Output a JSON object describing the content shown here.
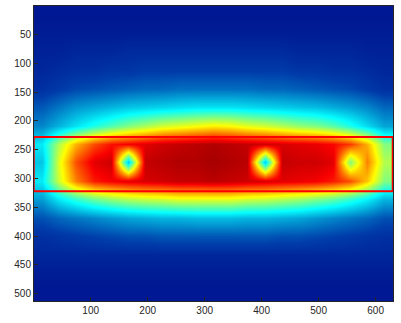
{
  "chart_data": {
    "type": "heatmap",
    "color": "Jet",
    "x": [
      15,
      45,
      75,
      105,
      135,
      165,
      195,
      225,
      255,
      285,
      315,
      345,
      375,
      405,
      435,
      465,
      495,
      525,
      555,
      585,
      615
    ],
    "y": [
      16,
      48,
      80,
      112,
      144,
      176,
      208,
      240,
      272,
      304,
      336,
      368,
      400,
      432,
      464,
      496
    ],
    "zlim": [
      0,
      1
    ],
    "cells": [
      [
        0.05,
        0.05,
        0.05,
        0.05,
        0.05,
        0.05,
        0.05,
        0.05,
        0.05,
        0.05,
        0.05,
        0.05,
        0.05,
        0.05,
        0.05,
        0.05,
        0.05,
        0.05,
        0.05,
        0.05,
        0.05
      ],
      [
        0.06,
        0.06,
        0.06,
        0.06,
        0.06,
        0.06,
        0.06,
        0.06,
        0.06,
        0.06,
        0.06,
        0.06,
        0.06,
        0.06,
        0.06,
        0.06,
        0.06,
        0.06,
        0.06,
        0.06,
        0.06
      ],
      [
        0.07,
        0.07,
        0.08,
        0.08,
        0.08,
        0.09,
        0.09,
        0.09,
        0.09,
        0.09,
        0.09,
        0.09,
        0.09,
        0.09,
        0.09,
        0.08,
        0.08,
        0.08,
        0.08,
        0.07,
        0.07
      ],
      [
        0.08,
        0.09,
        0.1,
        0.1,
        0.11,
        0.11,
        0.12,
        0.12,
        0.12,
        0.12,
        0.12,
        0.12,
        0.12,
        0.12,
        0.12,
        0.11,
        0.11,
        0.1,
        0.1,
        0.09,
        0.08
      ],
      [
        0.1,
        0.12,
        0.14,
        0.15,
        0.16,
        0.17,
        0.18,
        0.18,
        0.19,
        0.19,
        0.19,
        0.19,
        0.19,
        0.18,
        0.18,
        0.17,
        0.16,
        0.15,
        0.14,
        0.12,
        0.1
      ],
      [
        0.16,
        0.2,
        0.24,
        0.26,
        0.28,
        0.3,
        0.31,
        0.32,
        0.33,
        0.34,
        0.34,
        0.34,
        0.33,
        0.32,
        0.31,
        0.3,
        0.29,
        0.27,
        0.25,
        0.22,
        0.18
      ],
      [
        0.22,
        0.28,
        0.34,
        0.4,
        0.45,
        0.5,
        0.54,
        0.58,
        0.6,
        0.62,
        0.64,
        0.63,
        0.6,
        0.58,
        0.55,
        0.52,
        0.5,
        0.46,
        0.4,
        0.33,
        0.26
      ],
      [
        0.35,
        0.55,
        0.7,
        0.8,
        0.86,
        0.88,
        0.9,
        0.92,
        0.93,
        0.94,
        0.95,
        0.94,
        0.93,
        0.92,
        0.91,
        0.9,
        0.89,
        0.87,
        0.82,
        0.7,
        0.5
      ],
      [
        0.3,
        0.6,
        0.8,
        0.9,
        0.92,
        0.3,
        0.93,
        0.94,
        0.95,
        0.95,
        0.96,
        0.95,
        0.94,
        0.3,
        0.93,
        0.92,
        0.92,
        0.9,
        0.5,
        0.75,
        0.55
      ],
      [
        0.35,
        0.58,
        0.75,
        0.85,
        0.88,
        0.9,
        0.91,
        0.92,
        0.93,
        0.93,
        0.94,
        0.93,
        0.92,
        0.91,
        0.9,
        0.89,
        0.88,
        0.85,
        0.8,
        0.68,
        0.5
      ],
      [
        0.25,
        0.35,
        0.42,
        0.48,
        0.52,
        0.55,
        0.57,
        0.58,
        0.6,
        0.6,
        0.6,
        0.6,
        0.58,
        0.57,
        0.55,
        0.53,
        0.5,
        0.47,
        0.42,
        0.36,
        0.28
      ],
      [
        0.15,
        0.18,
        0.2,
        0.22,
        0.24,
        0.26,
        0.27,
        0.28,
        0.28,
        0.29,
        0.29,
        0.29,
        0.28,
        0.28,
        0.27,
        0.26,
        0.24,
        0.22,
        0.2,
        0.18,
        0.15
      ],
      [
        0.1,
        0.11,
        0.12,
        0.13,
        0.14,
        0.15,
        0.15,
        0.16,
        0.16,
        0.16,
        0.16,
        0.16,
        0.16,
        0.16,
        0.15,
        0.15,
        0.14,
        0.13,
        0.12,
        0.11,
        0.1
      ],
      [
        0.08,
        0.08,
        0.08,
        0.08,
        0.08,
        0.08,
        0.08,
        0.08,
        0.08,
        0.08,
        0.08,
        0.08,
        0.08,
        0.08,
        0.08,
        0.08,
        0.08,
        0.08,
        0.08,
        0.08,
        0.08
      ],
      [
        0.06,
        0.06,
        0.06,
        0.06,
        0.06,
        0.06,
        0.06,
        0.06,
        0.06,
        0.06,
        0.06,
        0.06,
        0.06,
        0.06,
        0.06,
        0.06,
        0.06,
        0.06,
        0.06,
        0.06,
        0.06
      ],
      [
        0.05,
        0.05,
        0.05,
        0.05,
        0.05,
        0.05,
        0.05,
        0.05,
        0.05,
        0.05,
        0.05,
        0.05,
        0.05,
        0.05,
        0.05,
        0.05,
        0.05,
        0.05,
        0.05,
        0.05,
        0.05
      ]
    ],
    "xlim": [
      0.5,
      630.5
    ],
    "ylim": [
      512.5,
      0.5
    ],
    "xticks": [
      100,
      200,
      300,
      400,
      500,
      600
    ],
    "yticks": [
      50,
      100,
      150,
      200,
      250,
      300,
      350,
      400,
      450,
      500
    ],
    "rectangle": {
      "x": [
        0,
        630
      ],
      "y": [
        228,
        322
      ],
      "color": "red"
    },
    "grid": false
  }
}
